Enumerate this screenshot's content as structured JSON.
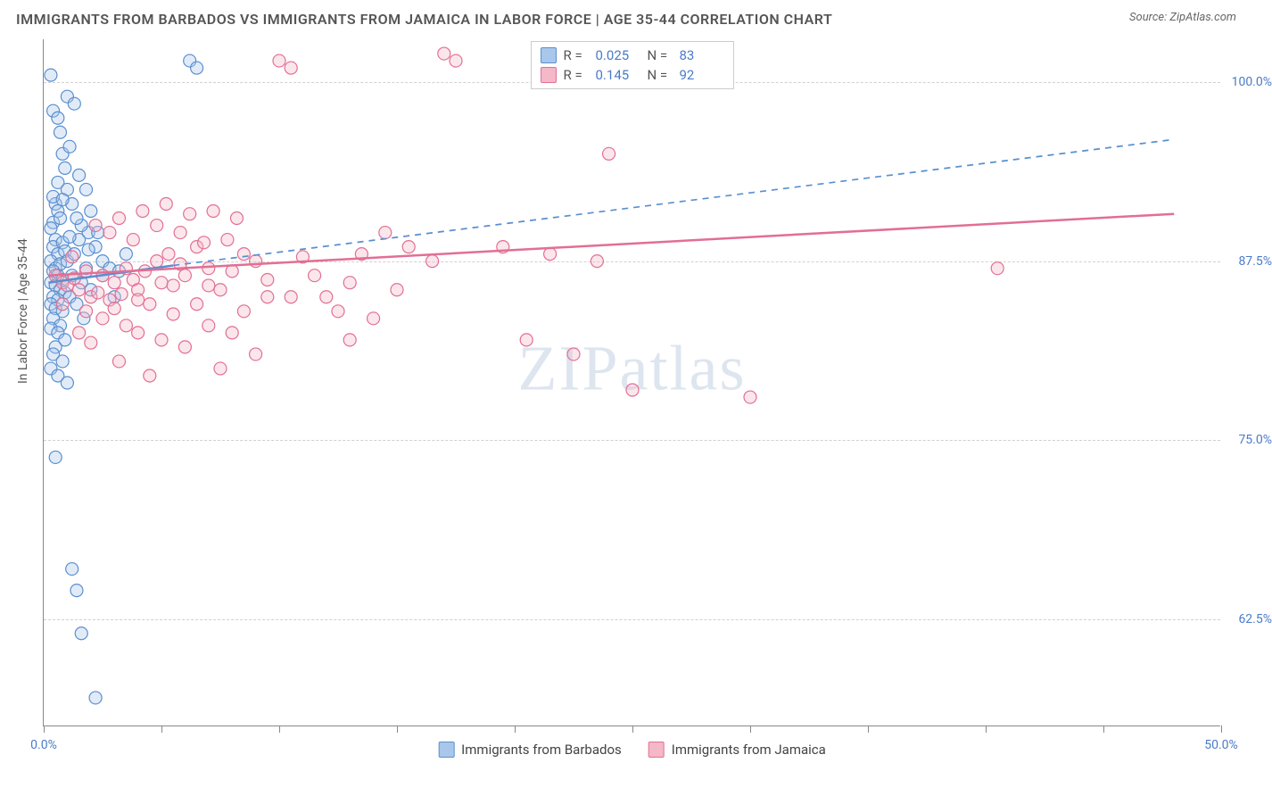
{
  "title": "IMMIGRANTS FROM BARBADOS VS IMMIGRANTS FROM JAMAICA IN LABOR FORCE | AGE 35-44 CORRELATION CHART",
  "source": "Source: ZipAtlas.com",
  "ylabel": "In Labor Force | Age 35-44",
  "watermark": "ZIPatlas",
  "chart": {
    "type": "scatter",
    "background_color": "#ffffff",
    "grid_color": "#d0d0d0",
    "axis_color": "#888888",
    "tick_label_color": "#4a7bc8",
    "xlim": [
      0,
      50
    ],
    "ylim": [
      55,
      103
    ],
    "xtick_positions": [
      0,
      5,
      10,
      15,
      20,
      25,
      30,
      35,
      40,
      45,
      50
    ],
    "xtick_labels": {
      "0": "0.0%",
      "50": "50.0%"
    },
    "ytick_positions": [
      62.5,
      75.0,
      87.5,
      100.0
    ],
    "ytick_labels": [
      "62.5%",
      "75.0%",
      "87.5%",
      "100.0%"
    ],
    "marker_radius": 7,
    "marker_opacity": 0.35,
    "trend_line_width": 2.5
  },
  "series": [
    {
      "name": "Immigrants from Barbados",
      "color_fill": "#a9c7ea",
      "color_stroke": "#5a8fd0",
      "trend_style": "solid-then-dashed",
      "trend_solid": [
        [
          0.2,
          86.0
        ],
        [
          5.5,
          87.2
        ]
      ],
      "trend_dash": [
        [
          5.5,
          87.2
        ],
        [
          48,
          96.0
        ]
      ],
      "stats": {
        "R": "0.025",
        "N": "83"
      },
      "points": [
        [
          0.3,
          100.5
        ],
        [
          0.5,
          91.5
        ],
        [
          0.6,
          91.0
        ],
        [
          0.4,
          90.2
        ],
        [
          0.7,
          90.5
        ],
        [
          0.3,
          89.8
        ],
        [
          0.5,
          89.0
        ],
        [
          0.4,
          88.5
        ],
        [
          0.8,
          88.8
        ],
        [
          0.6,
          88.0
        ],
        [
          0.9,
          88.2
        ],
        [
          0.3,
          87.5
        ],
        [
          0.5,
          87.0
        ],
        [
          0.7,
          87.3
        ],
        [
          1.0,
          87.5
        ],
        [
          0.4,
          86.8
        ],
        [
          0.6,
          86.5
        ],
        [
          0.8,
          86.2
        ],
        [
          0.3,
          86.0
        ],
        [
          1.2,
          86.5
        ],
        [
          0.5,
          85.8
        ],
        [
          0.7,
          85.5
        ],
        [
          0.4,
          85.0
        ],
        [
          0.9,
          85.3
        ],
        [
          0.6,
          84.8
        ],
        [
          0.3,
          84.5
        ],
        [
          1.1,
          85.0
        ],
        [
          0.5,
          84.2
        ],
        [
          0.8,
          84.0
        ],
        [
          0.4,
          83.5
        ],
        [
          0.7,
          83.0
        ],
        [
          0.3,
          82.8
        ],
        [
          0.6,
          82.5
        ],
        [
          0.9,
          82.0
        ],
        [
          0.5,
          81.5
        ],
        [
          0.4,
          81.0
        ],
        [
          0.8,
          80.5
        ],
        [
          0.3,
          80.0
        ],
        [
          0.6,
          79.5
        ],
        [
          1.0,
          79.0
        ],
        [
          0.5,
          73.8
        ],
        [
          0.4,
          98.0
        ],
        [
          0.6,
          97.5
        ],
        [
          1.5,
          89.0
        ],
        [
          1.3,
          88.0
        ],
        [
          1.8,
          87.0
        ],
        [
          1.6,
          86.0
        ],
        [
          2.0,
          85.5
        ],
        [
          1.4,
          84.5
        ],
        [
          1.7,
          83.5
        ],
        [
          2.2,
          88.5
        ],
        [
          2.5,
          87.5
        ],
        [
          1.9,
          89.5
        ],
        [
          2.8,
          87.0
        ],
        [
          3.0,
          85.0
        ],
        [
          3.5,
          88.0
        ],
        [
          1.2,
          66.0
        ],
        [
          1.4,
          64.5
        ],
        [
          1.6,
          61.5
        ],
        [
          2.2,
          57.0
        ],
        [
          0.8,
          95.0
        ],
        [
          6.2,
          101.5
        ],
        [
          6.5,
          101.0
        ],
        [
          1.0,
          99.0
        ],
        [
          1.3,
          98.5
        ],
        [
          0.7,
          96.5
        ],
        [
          1.1,
          95.5
        ],
        [
          0.9,
          94.0
        ],
        [
          1.5,
          93.5
        ],
        [
          1.8,
          92.5
        ],
        [
          1.2,
          91.5
        ],
        [
          2.0,
          91.0
        ],
        [
          1.6,
          90.0
        ],
        [
          2.3,
          89.5
        ],
        [
          0.4,
          92.0
        ],
        [
          0.6,
          93.0
        ],
        [
          1.0,
          92.5
        ],
        [
          0.8,
          91.8
        ],
        [
          1.4,
          90.5
        ],
        [
          1.1,
          89.2
        ],
        [
          1.9,
          88.3
        ],
        [
          2.5,
          86.5
        ],
        [
          3.2,
          86.8
        ]
      ]
    },
    {
      "name": "Immigrants from Jamaica",
      "color_fill": "#f4b8c8",
      "color_stroke": "#e26f93",
      "trend_style": "solid",
      "trend_solid": [
        [
          0.2,
          86.5
        ],
        [
          48,
          90.8
        ]
      ],
      "trend_dash": [],
      "stats": {
        "R": "0.145",
        "N": "92"
      },
      "points": [
        [
          0.5,
          86.5
        ],
        [
          0.8,
          86.0
        ],
        [
          1.0,
          85.8
        ],
        [
          1.3,
          86.3
        ],
        [
          1.5,
          85.5
        ],
        [
          1.8,
          86.8
        ],
        [
          2.0,
          85.0
        ],
        [
          2.3,
          85.3
        ],
        [
          2.5,
          86.5
        ],
        [
          2.8,
          84.8
        ],
        [
          3.0,
          86.0
        ],
        [
          3.3,
          85.2
        ],
        [
          3.5,
          87.0
        ],
        [
          3.8,
          86.2
        ],
        [
          4.0,
          85.5
        ],
        [
          4.3,
          86.8
        ],
        [
          4.5,
          84.5
        ],
        [
          4.8,
          87.5
        ],
        [
          5.0,
          86.0
        ],
        [
          5.3,
          88.0
        ],
        [
          5.5,
          85.8
        ],
        [
          5.8,
          87.3
        ],
        [
          6.0,
          86.5
        ],
        [
          6.5,
          88.5
        ],
        [
          7.0,
          87.0
        ],
        [
          7.5,
          85.5
        ],
        [
          8.0,
          86.8
        ],
        [
          8.5,
          88.0
        ],
        [
          9.0,
          87.5
        ],
        [
          9.5,
          85.0
        ],
        [
          10.0,
          101.5
        ],
        [
          10.5,
          101.0
        ],
        [
          2.2,
          90.0
        ],
        [
          2.8,
          89.5
        ],
        [
          3.2,
          90.5
        ],
        [
          3.8,
          89.0
        ],
        [
          4.2,
          91.0
        ],
        [
          4.8,
          90.0
        ],
        [
          5.2,
          91.5
        ],
        [
          5.8,
          89.5
        ],
        [
          6.2,
          90.8
        ],
        [
          6.8,
          88.8
        ],
        [
          7.2,
          91.0
        ],
        [
          7.8,
          89.0
        ],
        [
          8.2,
          90.5
        ],
        [
          4.0,
          82.5
        ],
        [
          5.0,
          82.0
        ],
        [
          6.0,
          81.5
        ],
        [
          7.0,
          83.0
        ],
        [
          8.0,
          82.5
        ],
        [
          4.5,
          79.5
        ],
        [
          7.5,
          80.0
        ],
        [
          9.0,
          81.0
        ],
        [
          13.5,
          88.0
        ],
        [
          14.5,
          89.5
        ],
        [
          15.5,
          88.5
        ],
        [
          16.5,
          87.5
        ],
        [
          13.0,
          82.0
        ],
        [
          14.0,
          83.5
        ],
        [
          12.0,
          85.0
        ],
        [
          11.5,
          86.5
        ],
        [
          12.5,
          84.0
        ],
        [
          17.5,
          101.5
        ],
        [
          17.0,
          102.0
        ],
        [
          19.5,
          88.5
        ],
        [
          20.5,
          82.0
        ],
        [
          21.5,
          88.0
        ],
        [
          22.5,
          81.0
        ],
        [
          23.5,
          87.5
        ],
        [
          24.0,
          95.0
        ],
        [
          25.0,
          78.5
        ],
        [
          30.0,
          78.0
        ],
        [
          40.5,
          87.0
        ],
        [
          1.2,
          87.8
        ],
        [
          1.8,
          84.0
        ],
        [
          2.5,
          83.5
        ],
        [
          3.0,
          84.2
        ],
        [
          3.5,
          83.0
        ],
        [
          4.0,
          84.8
        ],
        [
          5.5,
          83.8
        ],
        [
          6.5,
          84.5
        ],
        [
          7.0,
          85.8
        ],
        [
          8.5,
          84.0
        ],
        [
          9.5,
          86.2
        ],
        [
          10.5,
          85.0
        ],
        [
          11.0,
          87.8
        ],
        [
          13.0,
          86.0
        ],
        [
          15.0,
          85.5
        ],
        [
          0.8,
          84.5
        ],
        [
          1.5,
          82.5
        ],
        [
          2.0,
          81.8
        ],
        [
          3.2,
          80.5
        ]
      ]
    }
  ],
  "legend_top": {
    "stat_r_label": "R =",
    "stat_n_label": "N ="
  }
}
